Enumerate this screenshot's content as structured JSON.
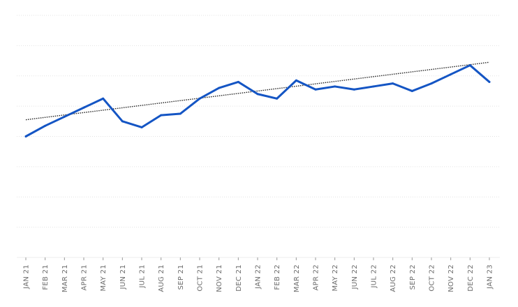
{
  "chart_data": {
    "type": "line",
    "title": "",
    "xlabel": "",
    "ylabel": "",
    "grid": true,
    "ylim": [
      0,
      8
    ],
    "categories": [
      "JAN 21",
      "FEB 21",
      "MAR 21",
      "APR 21",
      "MAY 21",
      "JUN 21",
      "JUL 21",
      "AUG 21",
      "SEP 21",
      "OCT 21",
      "NOV 21",
      "DEC 21",
      "JAN 22",
      "FEB 22",
      "MAR 22",
      "APR 22",
      "MAY 22",
      "JUN 22",
      "JUL 22",
      "AUG 22",
      "SEP 22",
      "OCT 22",
      "NOV 22",
      "DEC 22",
      "JAN 23"
    ],
    "series": [
      {
        "color": "#1455c4",
        "values": [
          4.0,
          4.35,
          4.65,
          4.95,
          5.25,
          4.5,
          4.3,
          4.7,
          4.75,
          5.25,
          5.6,
          5.8,
          5.4,
          5.25,
          5.85,
          5.55,
          5.65,
          5.55,
          5.65,
          5.75,
          5.5,
          5.75,
          6.05,
          6.35,
          5.8
        ]
      }
    ],
    "trendline": {
      "style": "dotted",
      "color": "#222222",
      "start": 4.55,
      "end": 6.45
    }
  }
}
